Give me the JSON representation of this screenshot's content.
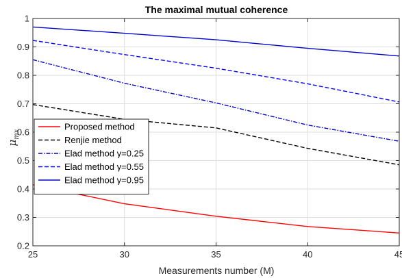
{
  "chart_data": {
    "type": "line",
    "title": "The maximal mutual coherence",
    "xlabel": "Measurements number (M)",
    "ylabel": {
      "symbol": "μ",
      "subscript": "mx"
    },
    "xlim": [
      25,
      45
    ],
    "ylim": [
      0.2,
      1
    ],
    "xticks": [
      25,
      30,
      35,
      40,
      45
    ],
    "yticks": [
      0.2,
      0.3,
      0.4,
      0.5,
      0.6,
      0.7,
      0.8,
      0.9,
      1
    ],
    "grid": true,
    "legend_position": "left-middle",
    "series": [
      {
        "name": "Proposed method",
        "color": "#ff0000",
        "dash": "solid",
        "x": [
          25,
          30,
          35,
          40,
          45
        ],
        "y": [
          0.415,
          0.348,
          0.304,
          0.268,
          0.245
        ]
      },
      {
        "name": "Renjie method",
        "color": "#000000",
        "dash": "dashed",
        "x": [
          25,
          30,
          35,
          40,
          45
        ],
        "y": [
          0.697,
          0.645,
          0.615,
          0.543,
          0.485
        ]
      },
      {
        "name": "Elad method γ=0.25",
        "color": "#0000cc",
        "dash": "dashdot",
        "x": [
          25,
          30,
          35,
          40,
          45
        ],
        "y": [
          0.855,
          0.772,
          0.703,
          0.625,
          0.568
        ]
      },
      {
        "name": "Elad method γ=0.55",
        "color": "#0000ff",
        "dash": "dashed",
        "x": [
          25,
          30,
          35,
          40,
          45
        ],
        "y": [
          0.923,
          0.873,
          0.825,
          0.77,
          0.706
        ]
      },
      {
        "name": "Elad method γ=0.95",
        "color": "#0000cc",
        "dash": "solid",
        "x": [
          25,
          30,
          35,
          40,
          45
        ],
        "y": [
          0.97,
          0.948,
          0.925,
          0.895,
          0.868
        ]
      }
    ]
  }
}
